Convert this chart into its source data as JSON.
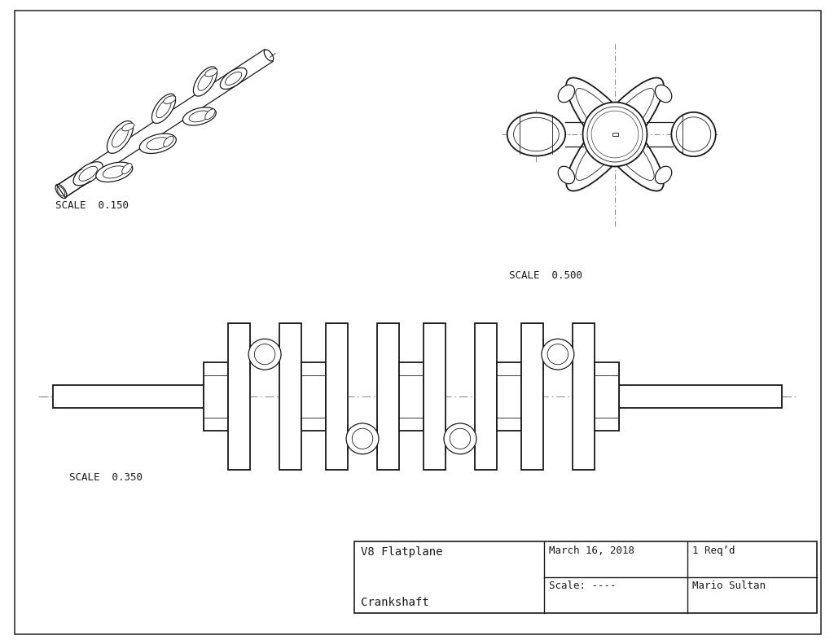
{
  "line_color": "#1a1a1a",
  "centerline_color": "#666666",
  "scale_iso": "SCALE  0.150",
  "scale_front": "SCALE  0.350",
  "scale_detail": "SCALE  0.500",
  "date": "March 16, 2018",
  "req": "1 Req’d",
  "scale_label": "Scale: ----",
  "author": "Mario Sultan",
  "font_size_scale": 9,
  "font_size_title": 10,
  "font_size_table": 9,
  "title_line1": "V8 Flatplane",
  "title_line2": "Crankshaft"
}
